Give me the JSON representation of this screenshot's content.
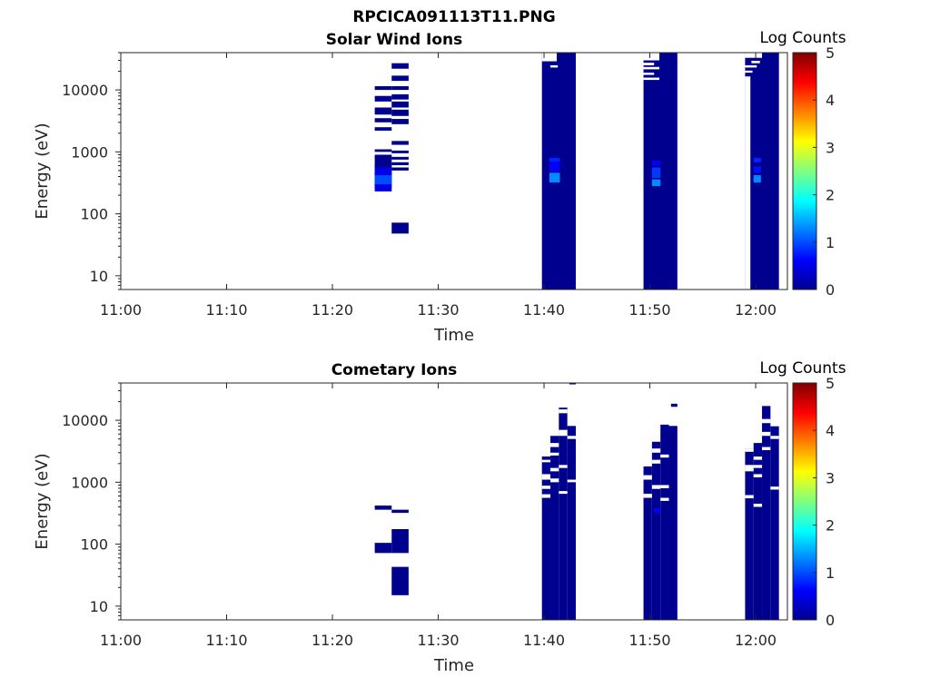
{
  "figure_title": "RPCICA091113T11.PNG",
  "colors": {
    "background": "#ffffff",
    "axis": "#262626",
    "base_count": "#00008f"
  },
  "chart_data": [
    {
      "type": "heatmap",
      "title": "Solar Wind Ions",
      "xlabel": "Time",
      "ylabel": "Energy (eV)",
      "yscale": "log",
      "xlim": [
        "11:00",
        "12:03"
      ],
      "ylim": [
        6,
        40000
      ],
      "x_ticks": [
        "11:00",
        "11:10",
        "11:20",
        "11:30",
        "11:40",
        "11:50",
        "12:00"
      ],
      "y_ticks": [
        "10",
        "100",
        "1000",
        "10000"
      ],
      "colorbar": {
        "label": "Log Counts",
        "range": [
          0,
          5
        ],
        "ticks": [
          "0",
          "1",
          "2",
          "3",
          "4",
          "5"
        ],
        "colormap": "jet"
      },
      "cells": [
        {
          "t0": "11:24",
          "t1": "11:25.6",
          "e0": 1000,
          "e1": 1100,
          "v": 0
        },
        {
          "t0": "11:24",
          "t1": "11:25.6",
          "e0": 780,
          "e1": 850,
          "v": 0
        },
        {
          "t0": "11:24",
          "t1": "11:25.6",
          "e0": 560,
          "e1": 620,
          "v": 0
        },
        {
          "t0": "11:24",
          "t1": "11:25.6",
          "e0": 400,
          "e1": 470,
          "v": 0
        },
        {
          "t0": "11:24",
          "t1": "11:25.6",
          "e0": 260,
          "e1": 900,
          "v": 0
        },
        {
          "t0": "11:24",
          "t1": "11:25.6",
          "e0": 230,
          "e1": 560,
          "v": 0.5
        },
        {
          "t0": "11:24",
          "t1": "11:25.6",
          "e0": 300,
          "e1": 420,
          "v": 1.0
        },
        {
          "t0": "11:24",
          "t1": "11:25.6",
          "e0": 10000,
          "e1": 11500,
          "v": 0
        },
        {
          "t0": "11:24",
          "t1": "11:25.6",
          "e0": 6500,
          "e1": 8000,
          "v": 0
        },
        {
          "t0": "11:24",
          "t1": "11:25.6",
          "e0": 4000,
          "e1": 5200,
          "v": 0
        },
        {
          "t0": "11:24",
          "t1": "11:25.6",
          "e0": 3000,
          "e1": 3500,
          "v": 0
        },
        {
          "t0": "11:24",
          "t1": "11:25.6",
          "e0": 2200,
          "e1": 2500,
          "v": 0
        },
        {
          "t0": "11:25.6",
          "t1": "11:27.2",
          "e0": 22000,
          "e1": 27000,
          "v": 0
        },
        {
          "t0": "11:25.6",
          "t1": "11:27.2",
          "e0": 14000,
          "e1": 17000,
          "v": 0
        },
        {
          "t0": "11:25.6",
          "t1": "11:27.2",
          "e0": 10000,
          "e1": 11500,
          "v": 0
        },
        {
          "t0": "11:25.6",
          "t1": "11:27.2",
          "e0": 7000,
          "e1": 8500,
          "v": 0
        },
        {
          "t0": "11:25.6",
          "t1": "11:27.2",
          "e0": 5200,
          "e1": 6500,
          "v": 0
        },
        {
          "t0": "11:25.6",
          "t1": "11:27.2",
          "e0": 3800,
          "e1": 4800,
          "v": 0
        },
        {
          "t0": "11:25.6",
          "t1": "11:27.2",
          "e0": 2800,
          "e1": 3400,
          "v": 0
        },
        {
          "t0": "11:25.6",
          "t1": "11:27.2",
          "e0": 1300,
          "e1": 1500,
          "v": 0
        },
        {
          "t0": "11:25.6",
          "t1": "11:27.2",
          "e0": 950,
          "e1": 1050,
          "v": 0
        },
        {
          "t0": "11:25.6",
          "t1": "11:27.2",
          "e0": 750,
          "e1": 830,
          "v": 0
        },
        {
          "t0": "11:25.6",
          "t1": "11:27.2",
          "e0": 610,
          "e1": 680,
          "v": 0
        },
        {
          "t0": "11:25.6",
          "t1": "11:27.2",
          "e0": 500,
          "e1": 560,
          "v": 0
        },
        {
          "t0": "11:25.6",
          "t1": "11:27.2",
          "e0": 48,
          "e1": 72,
          "v": 0
        },
        {
          "t0": "11:39.8",
          "t1": "11:43",
          "e0": 6,
          "e1": 40000,
          "v": 0
        },
        {
          "t0": "11:40.5",
          "t1": "11:41.5",
          "e0": 480,
          "e1": 700,
          "v": 0.6
        },
        {
          "t0": "11:40.5",
          "t1": "11:41.5",
          "e0": 320,
          "e1": 460,
          "v": 1.3
        },
        {
          "t0": "11:40.5",
          "t1": "11:41.5",
          "e0": 700,
          "e1": 800,
          "v": 0.8
        },
        {
          "t0": "11:49.4",
          "t1": "11:52.6",
          "e0": 6,
          "e1": 40000,
          "v": 0
        },
        {
          "t0": "11:50.2",
          "t1": "11:51",
          "e0": 600,
          "e1": 720,
          "v": 0.6
        },
        {
          "t0": "11:50.2",
          "t1": "11:51",
          "e0": 380,
          "e1": 560,
          "v": 0.9
        },
        {
          "t0": "11:50.2",
          "t1": "11:51",
          "e0": 280,
          "e1": 360,
          "v": 1.3
        },
        {
          "t0": "11:59",
          "t1": "12:02.2",
          "e0": 6,
          "e1": 40000,
          "v": 0
        },
        {
          "t0": "11:59.8",
          "t1": "12:00.5",
          "e0": 680,
          "e1": 800,
          "v": 0.8
        },
        {
          "t0": "11:59.8",
          "t1": "12:00.5",
          "e0": 460,
          "e1": 580,
          "v": 0.7
        },
        {
          "t0": "11:59.8",
          "t1": "12:00.5",
          "e0": 320,
          "e1": 420,
          "v": 1.3
        }
      ],
      "gaps": [
        {
          "t0": "11:39.8",
          "t1": "11:41.2",
          "e0": 29000,
          "e1": 40000
        },
        {
          "t0": "11:40.6",
          "t1": "11:41.3",
          "e0": 23000,
          "e1": 25000
        },
        {
          "t0": "11:49.4",
          "t1": "11:50.9",
          "e0": 30000,
          "e1": 40000
        },
        {
          "t0": "11:49.4",
          "t1": "11:50.4",
          "e0": 25000,
          "e1": 27500
        },
        {
          "t0": "11:49.4",
          "t1": "11:50.9",
          "e0": 21500,
          "e1": 23500
        },
        {
          "t0": "11:49.4",
          "t1": "11:50.4",
          "e0": 17500,
          "e1": 19000
        },
        {
          "t0": "11:49.4",
          "t1": "11:50.9",
          "e0": 14500,
          "e1": 15800
        },
        {
          "t0": "11:59",
          "t1": "12:00.6",
          "e0": 33000,
          "e1": 40000
        },
        {
          "t0": "11:59.6",
          "t1": "12:00.4",
          "e0": 27000,
          "e1": 29500
        },
        {
          "t0": "11:59",
          "t1": "12:00.1",
          "e0": 23000,
          "e1": 25000
        },
        {
          "t0": "11:59",
          "t1": "11:59.7",
          "e0": 19000,
          "e1": 20500
        },
        {
          "t0": "11:59",
          "t1": "11:59.5",
          "e0": 6,
          "e1": 16500
        }
      ]
    },
    {
      "type": "heatmap",
      "title": "Cometary Ions",
      "xlabel": "Time",
      "ylabel": "Energy (eV)",
      "yscale": "log",
      "xlim": [
        "11:00",
        "12:03"
      ],
      "ylim": [
        6,
        40000
      ],
      "x_ticks": [
        "11:00",
        "11:10",
        "11:20",
        "11:30",
        "11:40",
        "11:50",
        "12:00"
      ],
      "y_ticks": [
        "10",
        "100",
        "1000",
        "10000"
      ],
      "colorbar": {
        "label": "Log Counts",
        "range": [
          0,
          5
        ],
        "ticks": [
          "0",
          "1",
          "2",
          "3",
          "4",
          "5"
        ],
        "colormap": "jet"
      },
      "cells": [
        {
          "t0": "11:24",
          "t1": "11:25.6",
          "e0": 360,
          "e1": 420,
          "v": 0
        },
        {
          "t0": "11:24",
          "t1": "11:25.6",
          "e0": 72,
          "e1": 105,
          "v": 0
        },
        {
          "t0": "11:25.6",
          "t1": "11:27.2",
          "e0": 320,
          "e1": 360,
          "v": 0
        },
        {
          "t0": "11:25.6",
          "t1": "11:27.2",
          "e0": 72,
          "e1": 175,
          "v": 0
        },
        {
          "t0": "11:25.6",
          "t1": "11:27.2",
          "e0": 15,
          "e1": 43,
          "v": 0
        },
        {
          "t0": "11:39.8",
          "t1": "11:40.6",
          "e0": 6,
          "e1": 2600,
          "v": 0
        },
        {
          "t0": "11:40.6",
          "t1": "11:41.4",
          "e0": 6,
          "e1": 5600,
          "v": 0
        },
        {
          "t0": "11:41.4",
          "t1": "11:42.2",
          "e0": 6,
          "e1": 16000,
          "v": 0
        },
        {
          "t0": "11:42.2",
          "t1": "11:43",
          "e0": 6,
          "e1": 8100,
          "v": 0
        },
        {
          "t0": "11:42.4",
          "t1": "11:43",
          "e0": 38000,
          "e1": 40000,
          "v": 0
        },
        {
          "t0": "11:49.4",
          "t1": "11:50.2",
          "e0": 6,
          "e1": 1800,
          "v": 0
        },
        {
          "t0": "11:50.2",
          "t1": "11:51",
          "e0": 6,
          "e1": 4500,
          "v": 0
        },
        {
          "t0": "11:51",
          "t1": "11:51.8",
          "e0": 6,
          "e1": 8500,
          "v": 0
        },
        {
          "t0": "11:51.8",
          "t1": "11:52.6",
          "e0": 6,
          "e1": 8100,
          "v": 0
        },
        {
          "t0": "11:52",
          "t1": "11:52.6",
          "e0": 16500,
          "e1": 18500,
          "v": 0
        },
        {
          "t0": "11:50.4",
          "t1": "11:51",
          "e0": 320,
          "e1": 380,
          "v": 0.6
        },
        {
          "t0": "11:59",
          "t1": "11:59.8",
          "e0": 6,
          "e1": 3500,
          "v": 0
        },
        {
          "t0": "11:59.8",
          "t1": "12:00.6",
          "e0": 6,
          "e1": 4300,
          "v": 0
        },
        {
          "t0": "12:00.6",
          "t1": "12:01.4",
          "e0": 6,
          "e1": 17000,
          "v": 0
        },
        {
          "t0": "12:01.4",
          "t1": "12:02.2",
          "e0": 6,
          "e1": 8000,
          "v": 0
        }
      ],
      "gaps": [
        {
          "t0": "11:39.8",
          "t1": "11:40.6",
          "e0": 2100,
          "e1": 2300
        },
        {
          "t0": "11:39.8",
          "t1": "11:40.6",
          "e0": 1100,
          "e1": 1350
        },
        {
          "t0": "11:39.8",
          "t1": "11:40.6",
          "e0": 780,
          "e1": 880
        },
        {
          "t0": "11:39.8",
          "t1": "11:40.6",
          "e0": 560,
          "e1": 640
        },
        {
          "t0": "11:40.6",
          "t1": "11:41.4",
          "e0": 3700,
          "e1": 4300
        },
        {
          "t0": "11:40.6",
          "t1": "11:41.4",
          "e0": 2700,
          "e1": 3000
        },
        {
          "t0": "11:40.6",
          "t1": "11:41.4",
          "e0": 1500,
          "e1": 1700
        },
        {
          "t0": "11:40.6",
          "t1": "11:41.4",
          "e0": 1000,
          "e1": 1150
        },
        {
          "t0": "11:41.4",
          "t1": "11:42.2",
          "e0": 13000,
          "e1": 15000
        },
        {
          "t0": "11:41.4",
          "t1": "11:42.2",
          "e0": 5600,
          "e1": 7000
        },
        {
          "t0": "11:41.4",
          "t1": "11:42.2",
          "e0": 1700,
          "e1": 1900
        },
        {
          "t0": "11:41.4",
          "t1": "11:42.2",
          "e0": 650,
          "e1": 720
        },
        {
          "t0": "11:42.2",
          "t1": "11:43",
          "e0": 1000,
          "e1": 1100
        },
        {
          "t0": "11:42.2",
          "t1": "11:43",
          "e0": 5000,
          "e1": 5600
        },
        {
          "t0": "11:49.4",
          "t1": "11:50.2",
          "e0": 1100,
          "e1": 1300
        },
        {
          "t0": "11:49.4",
          "t1": "11:50.2",
          "e0": 560,
          "e1": 650
        },
        {
          "t0": "11:50.2",
          "t1": "11:51",
          "e0": 3000,
          "e1": 3500
        },
        {
          "t0": "11:50.2",
          "t1": "11:51",
          "e0": 2000,
          "e1": 2300
        },
        {
          "t0": "11:50.2",
          "t1": "11:51",
          "e0": 780,
          "e1": 900
        },
        {
          "t0": "11:51",
          "t1": "11:51.8",
          "e0": 2500,
          "e1": 2800
        },
        {
          "t0": "11:51",
          "t1": "11:51.8",
          "e0": 800,
          "e1": 900
        },
        {
          "t0": "11:51",
          "t1": "11:51.8",
          "e0": 500,
          "e1": 560
        },
        {
          "t0": "11:59",
          "t1": "11:59.8",
          "e0": 3100,
          "e1": 3500
        },
        {
          "t0": "11:59",
          "t1": "11:59.8",
          "e0": 1500,
          "e1": 1900
        },
        {
          "t0": "11:59",
          "t1": "11:59.8",
          "e0": 550,
          "e1": 620
        },
        {
          "t0": "11:59.8",
          "t1": "12:00.6",
          "e0": 2300,
          "e1": 2600
        },
        {
          "t0": "11:59.8",
          "t1": "12:00.6",
          "e0": 1700,
          "e1": 1900
        },
        {
          "t0": "11:59.8",
          "t1": "12:00.6",
          "e0": 1200,
          "e1": 1350
        },
        {
          "t0": "11:59.8",
          "t1": "12:00.6",
          "e0": 400,
          "e1": 450
        },
        {
          "t0": "12:00.6",
          "t1": "12:01.4",
          "e0": 9000,
          "e1": 10500
        },
        {
          "t0": "12:00.6",
          "t1": "12:01.4",
          "e0": 5600,
          "e1": 6500
        },
        {
          "t0": "12:00.6",
          "t1": "12:01.4",
          "e0": 3300,
          "e1": 3700
        },
        {
          "t0": "12:01.4",
          "t1": "12:02.2",
          "e0": 5000,
          "e1": 5600
        },
        {
          "t0": "12:01.4",
          "t1": "12:02.2",
          "e0": 760,
          "e1": 850
        }
      ]
    }
  ]
}
